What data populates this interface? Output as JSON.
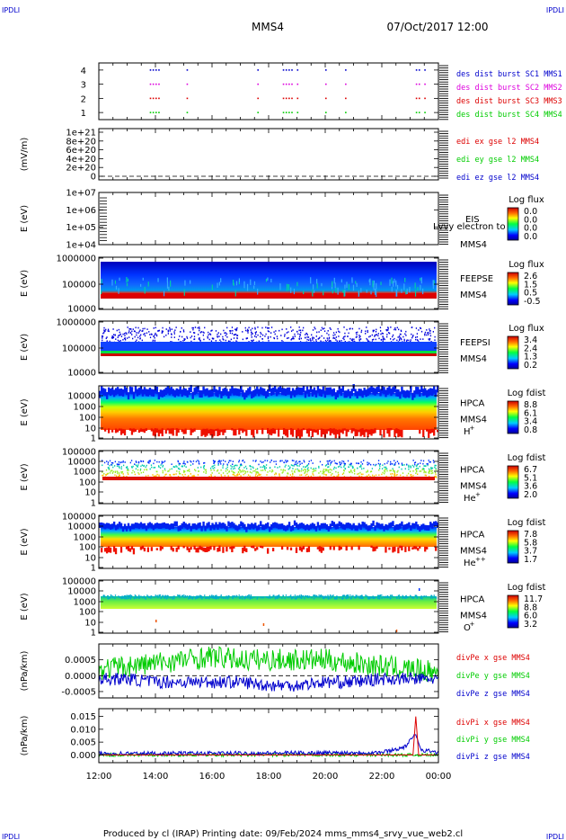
{
  "header": {
    "corner_left": "IPDLI",
    "corner_right": "IPDLI",
    "spacecraft": "MMS4",
    "date_time": "07/Oct/2017 12:00"
  },
  "footer": {
    "corner_left": "IPDLI",
    "corner_right": "IPDLI",
    "credits": "Produced by cl (IRAP)   Printing date: 09/Feb/2024   mms_mms4_srvy_vue_web2.cl"
  },
  "colors": {
    "blue": "#0000cc",
    "magenta": "#dd00dd",
    "red": "#dd0000",
    "green": "#00cc00"
  },
  "chart_data": [
    {
      "type": "scatter",
      "id": "burst",
      "ylim": [
        0.5,
        4.5
      ],
      "yticks": [
        "4",
        "3",
        "2",
        "1"
      ],
      "series": [
        {
          "name": "des dist burst SC1 MMS1",
          "y": 4,
          "color": "#0000cc",
          "x": [
            13.8,
            13.9,
            14.0,
            14.1,
            15.1,
            17.6,
            18.5,
            18.6,
            18.7,
            18.8,
            19.0,
            20.0,
            20.7,
            23.2,
            23.3,
            23.5
          ]
        },
        {
          "name": "des dist burst SC2 MMS2",
          "y": 3,
          "color": "#dd00dd",
          "x": [
            13.8,
            13.9,
            14.0,
            14.1,
            15.1,
            17.6,
            18.5,
            18.6,
            18.7,
            18.8,
            19.0,
            20.0,
            20.7,
            23.2,
            23.3,
            23.5
          ]
        },
        {
          "name": "des dist burst SC3 MMS3",
          "y": 2,
          "color": "#dd0000",
          "x": [
            13.8,
            13.9,
            14.0,
            14.1,
            15.1,
            17.6,
            18.5,
            18.6,
            18.7,
            18.8,
            19.0,
            20.0,
            20.7,
            23.2,
            23.3,
            23.5
          ]
        },
        {
          "name": "des dist burst SC4 MMS4",
          "y": 1,
          "color": "#00cc00",
          "x": [
            13.8,
            13.9,
            14.0,
            14.1,
            15.1,
            17.6,
            18.5,
            18.6,
            18.7,
            18.8,
            19.0,
            20.0,
            20.7,
            23.2,
            23.3,
            23.5
          ]
        }
      ]
    },
    {
      "type": "line",
      "id": "edi",
      "ylabel": "(mV/m)",
      "ylim": [
        0,
        1e+21
      ],
      "yticks": [
        "1e+21",
        "8e+20",
        "6e+20",
        "4e+20",
        "2e+20",
        "0"
      ],
      "series": [
        {
          "name": "edi ex gse l2 MMS4",
          "color": "#dd0000"
        },
        {
          "name": "edi ey gse l2 MMS4",
          "color": "#00cc00"
        },
        {
          "name": "edi ez gse l2 MMS4",
          "color": "#0000cc"
        }
      ]
    },
    {
      "type": "heatmap",
      "id": "eis",
      "ylabel": "E (eV)",
      "yticks": [
        "1e+07",
        "1e+06",
        "1e+05",
        "1e+04"
      ],
      "instrument": "EIS",
      "overlay_text": "Lvvy electron to",
      "spacecraft": "MMS4",
      "colorbar_title": "Log flux",
      "colorbar_ticks": [
        "0.0",
        "0.0",
        "0.0",
        "0.0"
      ]
    },
    {
      "type": "heatmap",
      "id": "feepse",
      "ylabel": "E (eV)",
      "yticks": [
        "1000000",
        "100000",
        "10000"
      ],
      "instrument": "FEEPSE",
      "spacecraft": "MMS4",
      "colorbar_title": "Log flux",
      "colorbar_ticks": [
        "2.6",
        "1.5",
        "0.5",
        "-0.5"
      ]
    },
    {
      "type": "heatmap",
      "id": "feepsi",
      "ylabel": "E (eV)",
      "yticks": [
        "1000000",
        "100000",
        "10000"
      ],
      "instrument": "FEEPSI",
      "spacecraft": "MMS4",
      "colorbar_title": "Log flux",
      "colorbar_ticks": [
        "3.4",
        "2.4",
        "1.3",
        "0.2"
      ]
    },
    {
      "type": "heatmap",
      "id": "hpca_h",
      "ylabel": "E (eV)",
      "yticks": [
        "10000",
        "1000",
        "100",
        "10",
        "1"
      ],
      "instrument": "HPCA",
      "spacecraft": "MMS4",
      "species": "H",
      "species_sup": "+",
      "colorbar_title": "Log fdist",
      "colorbar_ticks": [
        "8.8",
        "6.1",
        "3.4",
        "0.8"
      ]
    },
    {
      "type": "heatmap",
      "id": "hpca_he",
      "ylabel": "E (eV)",
      "yticks": [
        "100000",
        "10000",
        "1000",
        "100",
        "10",
        "1"
      ],
      "instrument": "HPCA",
      "spacecraft": "MMS4",
      "species": "He",
      "species_sup": "+",
      "colorbar_title": "Log fdist",
      "colorbar_ticks": [
        "6.7",
        "5.1",
        "3.6",
        "2.0"
      ]
    },
    {
      "type": "heatmap",
      "id": "hpca_hepp",
      "ylabel": "E (eV)",
      "yticks": [
        "100000",
        "10000",
        "1000",
        "100",
        "10",
        "1"
      ],
      "instrument": "HPCA",
      "spacecraft": "MMS4",
      "species": "He",
      "species_sup": "++",
      "colorbar_title": "Log fdist",
      "colorbar_ticks": [
        "7.8",
        "5.8",
        "3.7",
        "1.7"
      ]
    },
    {
      "type": "heatmap",
      "id": "hpca_o",
      "ylabel": "E (eV)",
      "yticks": [
        "100000",
        "10000",
        "1000",
        "100",
        "10",
        "1"
      ],
      "instrument": "HPCA",
      "spacecraft": "MMS4",
      "species": "O",
      "species_sup": "+",
      "colorbar_title": "Log fdist",
      "colorbar_ticks": [
        "11.7",
        "8.8",
        "6.0",
        "3.2"
      ]
    },
    {
      "type": "line",
      "id": "divpe",
      "ylabel": "(nPa/km)",
      "ylim": [
        -0.0007,
        0.001
      ],
      "yticks": [
        "0.0005",
        "0.0000",
        "-0.0005"
      ],
      "ytick_values": [
        0.0005,
        0.0,
        -0.0005
      ],
      "series": [
        {
          "name": "divPe x gse MMS4",
          "color": "#dd0000"
        },
        {
          "name": "divPe y gse MMS4",
          "color": "#00cc00",
          "x": [
            12,
            13,
            14,
            15,
            16,
            17,
            18,
            19,
            20,
            21,
            22,
            23,
            24
          ],
          "values": [
            0.0002,
            0.0003,
            0.0004,
            0.0005,
            0.0006,
            0.0005,
            0.0005,
            0.0005,
            0.0005,
            0.0004,
            0.0003,
            0.0002,
            0.0001
          ]
        },
        {
          "name": "divPe z gse MMS4",
          "color": "#0000cc",
          "x": [
            12,
            13,
            14,
            15,
            16,
            17,
            18,
            19,
            20,
            21,
            22,
            23,
            24
          ],
          "values": [
            -0.0001,
            -0.0001,
            -0.0002,
            -0.0002,
            -0.0002,
            -0.0002,
            -0.0003,
            -0.0003,
            -0.0002,
            -0.0002,
            -0.0001,
            -0.0001,
            -0.0001
          ]
        }
      ]
    },
    {
      "type": "line",
      "id": "divpi",
      "ylabel": "(nPa/km)",
      "ylim": [
        -0.003,
        0.018
      ],
      "yticks": [
        "0.015",
        "0.010",
        "0.005",
        "0.000"
      ],
      "ytick_values": [
        0.015,
        0.01,
        0.005,
        0.0
      ],
      "series": [
        {
          "name": "divPi x gse MMS4",
          "color": "#dd0000",
          "x": [
            12,
            22,
            23.0,
            23.1,
            23.2,
            23.3,
            23.4,
            24
          ],
          "values": [
            0.0,
            0.0,
            0.0,
            0.0,
            0.015,
            0.0,
            0.0,
            0.0
          ]
        },
        {
          "name": "divPi y gse MMS4",
          "color": "#00cc00",
          "x": [
            12,
            18,
            24
          ],
          "values": [
            0.0,
            0.0,
            0.0
          ]
        },
        {
          "name": "divPi z gse MMS4",
          "color": "#0000cc",
          "x": [
            12,
            14,
            16,
            18,
            20,
            22,
            22.8,
            23.2,
            23.4,
            24
          ],
          "values": [
            0.0005,
            0.0006,
            0.0006,
            0.0007,
            0.0008,
            0.001,
            0.003,
            0.008,
            0.002,
            0.001
          ]
        }
      ]
    }
  ],
  "x_axis": {
    "xlim": [
      12,
      24
    ],
    "ticks": [
      {
        "x": 12,
        "label": "12:00"
      },
      {
        "x": 14,
        "label": "14:00"
      },
      {
        "x": 16,
        "label": "16:00"
      },
      {
        "x": 18,
        "label": "18:00"
      },
      {
        "x": 20,
        "label": "20:00"
      },
      {
        "x": 22,
        "label": "22:00"
      },
      {
        "x": 24,
        "label": "00:00"
      }
    ]
  }
}
